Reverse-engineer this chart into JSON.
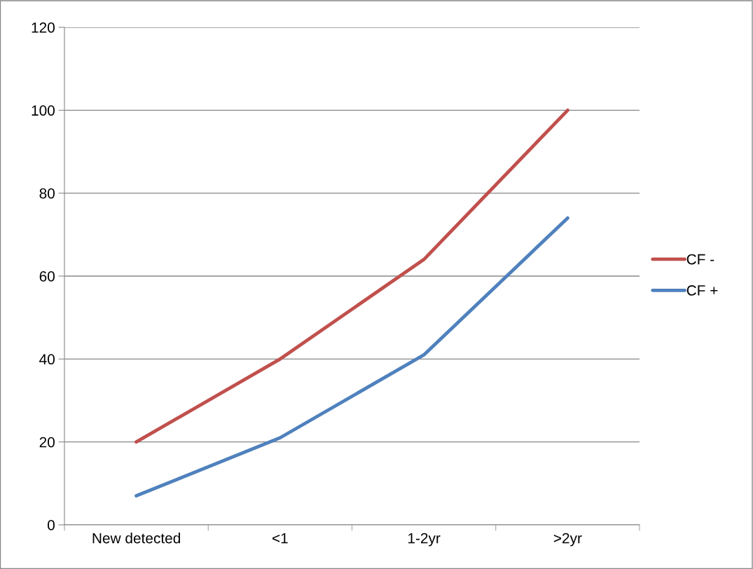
{
  "chart_data": {
    "type": "line",
    "categories": [
      "New detected",
      "<1",
      "1-2yr",
      ">2yr"
    ],
    "series": [
      {
        "name": "CF -",
        "color": "#c0504d",
        "values": [
          20,
          40,
          64,
          100
        ]
      },
      {
        "name": "CF +",
        "color": "#4f81bd",
        "values": [
          7,
          21,
          41,
          74
        ]
      }
    ],
    "ylim": [
      0,
      120
    ],
    "yticks": [
      0,
      20,
      40,
      60,
      80,
      100,
      120
    ],
    "grid": "y",
    "legend": "right",
    "marker": "none",
    "line_style": "solid"
  }
}
